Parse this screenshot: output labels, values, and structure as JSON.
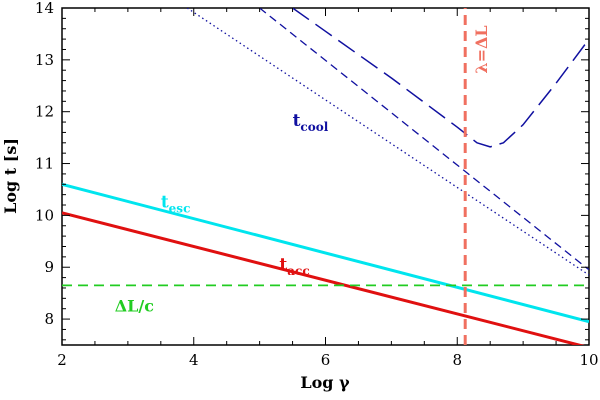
{
  "chart_data": {
    "type": "line",
    "xlabel": "Log γ",
    "ylabel": "Log t [s]",
    "xlim": [
      2,
      10
    ],
    "ylim": [
      7.5,
      14
    ],
    "x_ticks": [
      "2",
      "4",
      "6",
      "8",
      "10"
    ],
    "y_ticks": [
      "8",
      "9",
      "10",
      "11",
      "12",
      "13",
      "14"
    ],
    "series": [
      {
        "name": "t_acc",
        "color": "#e01010",
        "dash": "solid",
        "width": 3,
        "x": [
          2,
          10
        ],
        "y": [
          10.05,
          7.45
        ]
      },
      {
        "name": "t_esc",
        "color": "#00e5ee",
        "dash": "solid",
        "width": 3,
        "x": [
          2,
          10
        ],
        "y": [
          10.6,
          7.95
        ]
      },
      {
        "name": "ΔL/c",
        "color": "#22cc22",
        "dash": "dashed",
        "width": 1.8,
        "x": [
          2,
          10
        ],
        "y": [
          8.65,
          8.65
        ]
      },
      {
        "name": "t_cool (dotted)",
        "color": "#1010a0",
        "dash": "dotted",
        "width": 1.3,
        "x": [
          3.9,
          10
        ],
        "y": [
          14,
          8.85
        ]
      },
      {
        "name": "t_cool (short dash)",
        "color": "#1010a0",
        "dash": "short",
        "width": 1.3,
        "x": [
          5.0,
          10
        ],
        "y": [
          14,
          8.95
        ]
      },
      {
        "name": "t_cool (long dash)",
        "color": "#1010a0",
        "dash": "long",
        "width": 1.5,
        "x": [
          5.5,
          6.0,
          7.0,
          8.0,
          8.3,
          8.5,
          8.7,
          9.0,
          9.5,
          10.0
        ],
        "y": [
          14,
          13.55,
          12.65,
          11.7,
          11.4,
          11.32,
          11.4,
          11.75,
          12.55,
          13.4
        ]
      },
      {
        "name": "λ = ΔL",
        "color": "#f07060",
        "dash": "dashed",
        "width": 3,
        "x": [
          8.12,
          8.12
        ],
        "y": [
          7.5,
          14
        ]
      }
    ],
    "annotations": [
      {
        "id": "tcool",
        "main": "t",
        "sub": "cool",
        "color": "#1010a0",
        "x": 5.5,
        "y": 11.72
      },
      {
        "id": "tesc",
        "main": "t",
        "sub": "esc",
        "color": "#00e5ee",
        "x": 3.5,
        "y": 10.15
      },
      {
        "id": "tacc",
        "main": "t",
        "sub": "acc",
        "color": "#e01010",
        "x": 5.3,
        "y": 8.95
      },
      {
        "id": "dlc",
        "main": "ΔL/c",
        "sub": "",
        "color": "#22cc22",
        "x": 2.8,
        "y": 8.15
      },
      {
        "id": "lambda",
        "main": "λ=ΔL",
        "sub": "",
        "color": "#f07060",
        "x": 8.45,
        "y": 13.2,
        "rotate": -90
      }
    ]
  }
}
